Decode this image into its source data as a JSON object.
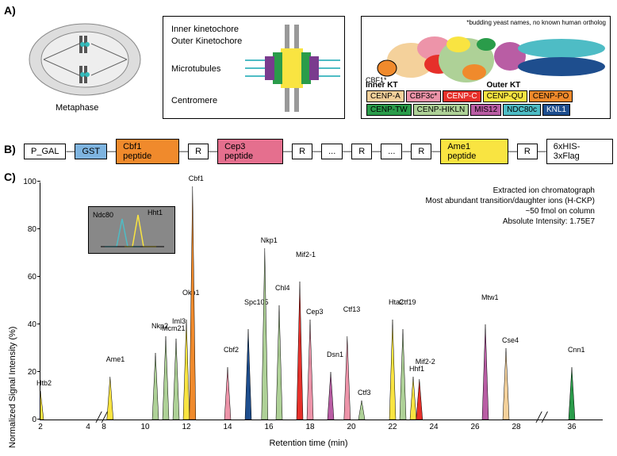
{
  "panelA": {
    "label": "A)",
    "cellLabel": "Metaphase",
    "ktLabels": {
      "inner": "Inner kinetochore",
      "outer": "Outer Kinetochore",
      "mt": "Microtubules",
      "cen": "Centromere"
    },
    "complexNote": "*budding yeast names, no known human ortholog",
    "cbf1": "CBF1*",
    "innerKT": "Inner KT",
    "outerKT": "Outer KT",
    "legend": [
      {
        "text": "CENP-A",
        "bg": "#f4d19b"
      },
      {
        "text": "CBF3c*",
        "bg": "#ed94a9"
      },
      {
        "text": "CENP-C",
        "bg": "#e6302a"
      },
      {
        "text": "CENP-QU",
        "bg": "#f9e441"
      },
      {
        "text": "CENP-PO",
        "bg": "#f08a2c"
      },
      {
        "text": "CENP-TW",
        "bg": "#2a9c4a"
      },
      {
        "text": "CENP-HIKLN",
        "bg": "#aed197"
      },
      {
        "text": "MIS12",
        "bg": "#b95da4"
      },
      {
        "text": "NDC80c",
        "bg": "#4ebcc5"
      },
      {
        "text": "KNL1",
        "bg": "#1e4e8e"
      }
    ]
  },
  "panelB": {
    "label": "B)",
    "items": [
      {
        "text": "P_GAL",
        "bg": "#fff"
      },
      {
        "text": "GST",
        "bg": "#7eb4e0"
      },
      {
        "text": "Cbf1 peptide",
        "bg": "#f08a2c"
      },
      {
        "text": "R",
        "bg": "#fff"
      },
      {
        "text": "Cep3 peptide",
        "bg": "#e56f8e"
      },
      {
        "text": "R",
        "bg": "#fff"
      },
      {
        "text": "...",
        "bg": "#fff"
      },
      {
        "text": "R",
        "bg": "#fff"
      },
      {
        "text": "...",
        "bg": "#fff"
      },
      {
        "text": "R",
        "bg": "#fff"
      },
      {
        "text": "Ame1 peptide",
        "bg": "#f9e441"
      },
      {
        "text": "R",
        "bg": "#fff"
      },
      {
        "text": "6xHIS-3xFlag",
        "bg": "#fff"
      }
    ]
  },
  "panelC": {
    "label": "C)",
    "ylabel": "Normalized Signal Intensity (%)",
    "xlabel": "Retention time (min)",
    "ylim": [
      0,
      100
    ],
    "yticks": [
      0,
      20,
      40,
      60,
      80,
      100
    ],
    "xticks": [
      2,
      4,
      8,
      10,
      12,
      14,
      16,
      18,
      20,
      22,
      24,
      26,
      28,
      36
    ],
    "info": [
      "Extracted ion chromatograph",
      "Most abundant transition/daughter ions (H-CKP)",
      "~50 fmol on column",
      "Absolute Intensity: 1.75E7"
    ],
    "insetLabels": [
      "Ndc80",
      "Hht1"
    ],
    "peaks": [
      {
        "rt": 2.0,
        "h": 12,
        "label": "Htb2",
        "color": "#f9e441"
      },
      {
        "rt": 8.3,
        "h": 18,
        "label": "Ame1",
        "color": "#f9e441"
      },
      {
        "rt": 10.5,
        "h": 28,
        "label": "Nkp2",
        "color": "#aed197"
      },
      {
        "rt": 11.0,
        "h": 35,
        "label": "Mcm21",
        "color": "#aed197"
      },
      {
        "rt": 11.5,
        "h": 34,
        "label": "Iml3",
        "color": "#aed197"
      },
      {
        "rt": 12.0,
        "h": 42,
        "label": "Okp1",
        "color": "#f9e441"
      },
      {
        "rt": 12.3,
        "h": 98,
        "label": "Cbf1",
        "color": "#f08a2c"
      },
      {
        "rt": 14.0,
        "h": 22,
        "label": "Cbf2",
        "color": "#ed94a9"
      },
      {
        "rt": 15.0,
        "h": 38,
        "label": "Spc105",
        "color": "#1e4e8e"
      },
      {
        "rt": 15.8,
        "h": 72,
        "label": "Nkp1",
        "color": "#aed197"
      },
      {
        "rt": 16.5,
        "h": 48,
        "label": "Chl4",
        "color": "#aed197"
      },
      {
        "rt": 17.5,
        "h": 58,
        "label": "Mif2-1",
        "color": "#e6302a"
      },
      {
        "rt": 18.0,
        "h": 42,
        "label": "Cep3",
        "color": "#ed94a9"
      },
      {
        "rt": 19.0,
        "h": 20,
        "label": "Dsn1",
        "color": "#b95da4"
      },
      {
        "rt": 19.8,
        "h": 35,
        "label": "Ctf13",
        "color": "#ed94a9"
      },
      {
        "rt": 20.5,
        "h": 8,
        "label": "Ctf3",
        "color": "#aed197"
      },
      {
        "rt": 22.0,
        "h": 42,
        "label": "Hta2",
        "color": "#f9e441"
      },
      {
        "rt": 22.5,
        "h": 38,
        "label": "Ctf19",
        "color": "#aed197"
      },
      {
        "rt": 23.0,
        "h": 18,
        "label": "Hhf1",
        "color": "#f9e441"
      },
      {
        "rt": 23.3,
        "h": 17,
        "label": "Mif2-2",
        "color": "#e6302a"
      },
      {
        "rt": 26.5,
        "h": 40,
        "label": "Mtw1",
        "color": "#b95da4"
      },
      {
        "rt": 27.5,
        "h": 30,
        "label": "Cse4",
        "color": "#f4d19b"
      },
      {
        "rt": 36.0,
        "h": 22,
        "label": "Cnn1",
        "color": "#2a9c4a"
      }
    ]
  }
}
